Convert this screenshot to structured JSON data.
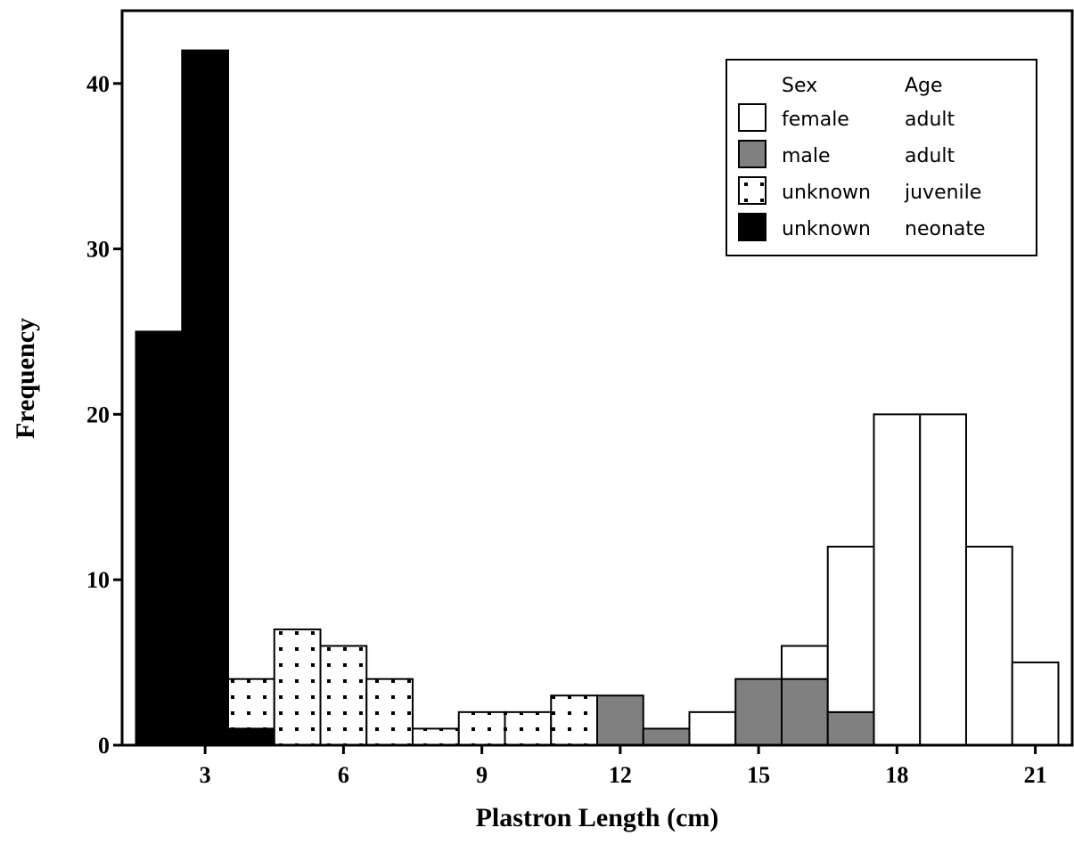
{
  "chart_data": {
    "type": "histogram",
    "x_label": "Plastron Length (cm)",
    "y_label": "Frequency",
    "bins": [
      1.5,
      2.5,
      3.5,
      4.5,
      5.5,
      6.5,
      7.5,
      8.5,
      9.5,
      10.5,
      11.5,
      12.5,
      13.5,
      14.5,
      15.5,
      16.5,
      17.5,
      18.5,
      19.5,
      20.5,
      21.5
    ],
    "xlim": [
      1.2,
      21.8
    ],
    "xticks": [
      3,
      6,
      9,
      12,
      15,
      18,
      21
    ],
    "ylim": [
      0,
      44.4
    ],
    "yticks": [
      0,
      10,
      20,
      30,
      40
    ],
    "stacked": true,
    "legend_position": "upper right",
    "legend_headers": [
      "Sex",
      "Age"
    ],
    "series": [
      {
        "name": "unknown",
        "age": "neonate",
        "color": "#000000",
        "pattern": "solid",
        "values": [
          25,
          42,
          1,
          0,
          0,
          0,
          0,
          0,
          0,
          0,
          0,
          0,
          0,
          0,
          0,
          0,
          0,
          0,
          0,
          0
        ]
      },
      {
        "name": "unknown",
        "age": "juvenile",
        "color": "#ffffff",
        "pattern": "dots",
        "values": [
          0,
          0,
          3,
          7,
          6,
          4,
          1,
          2,
          2,
          3,
          0,
          0,
          0,
          0,
          0,
          0,
          0,
          0,
          0,
          0
        ]
      },
      {
        "name": "male",
        "age": "adult",
        "color": "#808080",
        "pattern": "solid",
        "values": [
          0,
          0,
          0,
          0,
          0,
          0,
          0,
          0,
          0,
          0,
          3,
          1,
          0,
          4,
          4,
          2,
          0,
          0,
          0,
          0
        ]
      },
      {
        "name": "female",
        "age": "adult",
        "color": "#ffffff",
        "pattern": "solid",
        "values": [
          0,
          0,
          0,
          0,
          0,
          0,
          0,
          0,
          0,
          0,
          0,
          0,
          2,
          0,
          2,
          10,
          20,
          20,
          12,
          5
        ]
      }
    ]
  }
}
